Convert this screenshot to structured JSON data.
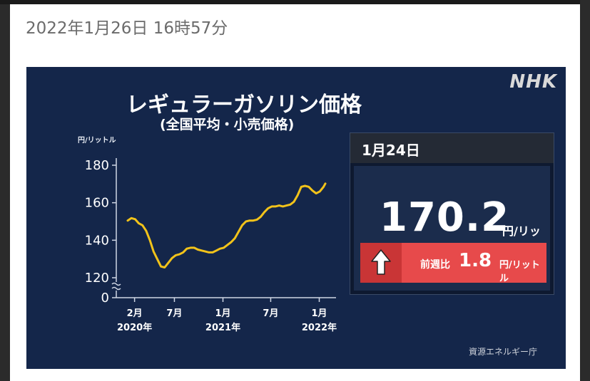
{
  "timestamp": "2022年1月26日 16時57分",
  "logo": "NHK",
  "title": "レギュラーガソリン価格",
  "subtitle": "(全国平均・小売価格)",
  "source": "資源エネルギー庁",
  "card": {
    "date": "1月24日",
    "price": "170.2",
    "price_unit": "円/リットル",
    "change_label": "前週比",
    "change_value": "1.8",
    "change_unit": "円/リットル",
    "change_direction": "up"
  },
  "colors": {
    "background": "#14264a",
    "line": "#f2c31a",
    "up": "#e74a4b"
  },
  "chart_data": {
    "type": "line",
    "title": "レギュラーガソリン価格",
    "subtitle": "(全国平均・小売価格)",
    "ylabel": "円/リットル",
    "ylim": [
      120,
      180
    ],
    "yticks": [
      "0",
      "120",
      "140",
      "160",
      "180"
    ],
    "y_axis_break": true,
    "grid": false,
    "x_ticks": [
      {
        "month": "2月",
        "year": "2020年",
        "date": "2020-02"
      },
      {
        "month": "7月",
        "year": "",
        "date": "2020-07"
      },
      {
        "month": "1月",
        "year": "2021年",
        "date": "2021-01"
      },
      {
        "month": "7月",
        "year": "",
        "date": "2021-07"
      },
      {
        "month": "1月",
        "year": "2022年",
        "date": "2022-01"
      }
    ],
    "x": [
      "2020-01-06",
      "2020-01-20",
      "2020-02-03",
      "2020-02-17",
      "2020-03-02",
      "2020-03-16",
      "2020-03-30",
      "2020-04-13",
      "2020-04-27",
      "2020-05-11",
      "2020-05-25",
      "2020-06-08",
      "2020-06-22",
      "2020-07-06",
      "2020-07-20",
      "2020-08-03",
      "2020-08-17",
      "2020-08-31",
      "2020-09-14",
      "2020-09-28",
      "2020-10-12",
      "2020-10-26",
      "2020-11-09",
      "2020-11-23",
      "2020-12-07",
      "2020-12-21",
      "2021-01-04",
      "2021-01-18",
      "2021-02-01",
      "2021-02-15",
      "2021-03-01",
      "2021-03-15",
      "2021-03-29",
      "2021-04-12",
      "2021-04-26",
      "2021-05-10",
      "2021-05-24",
      "2021-06-07",
      "2021-06-21",
      "2021-07-05",
      "2021-07-19",
      "2021-08-02",
      "2021-08-16",
      "2021-08-30",
      "2021-09-13",
      "2021-09-27",
      "2021-10-11",
      "2021-10-25",
      "2021-11-08",
      "2021-11-22",
      "2021-12-06",
      "2021-12-20",
      "2022-01-03",
      "2022-01-17",
      "2022-01-24"
    ],
    "series": [
      {
        "values": [
          150.5,
          151.8,
          151.2,
          149.0,
          148.0,
          145.0,
          140.0,
          134.0,
          130.0,
          126.0,
          125.5,
          128.0,
          130.5,
          132.0,
          132.5,
          133.5,
          135.5,
          136.0,
          136.0,
          135.0,
          134.5,
          134.0,
          133.5,
          133.5,
          134.5,
          135.5,
          136.0,
          137.5,
          139.0,
          141.0,
          144.5,
          148.0,
          150.0,
          150.5,
          150.5,
          151.0,
          152.5,
          155.0,
          157.0,
          158.0,
          158.0,
          158.5,
          158.0,
          158.5,
          159.0,
          160.5,
          164.0,
          168.5,
          169.0,
          168.5,
          166.5,
          165.0,
          166.0,
          168.4,
          170.2
        ]
      }
    ]
  }
}
